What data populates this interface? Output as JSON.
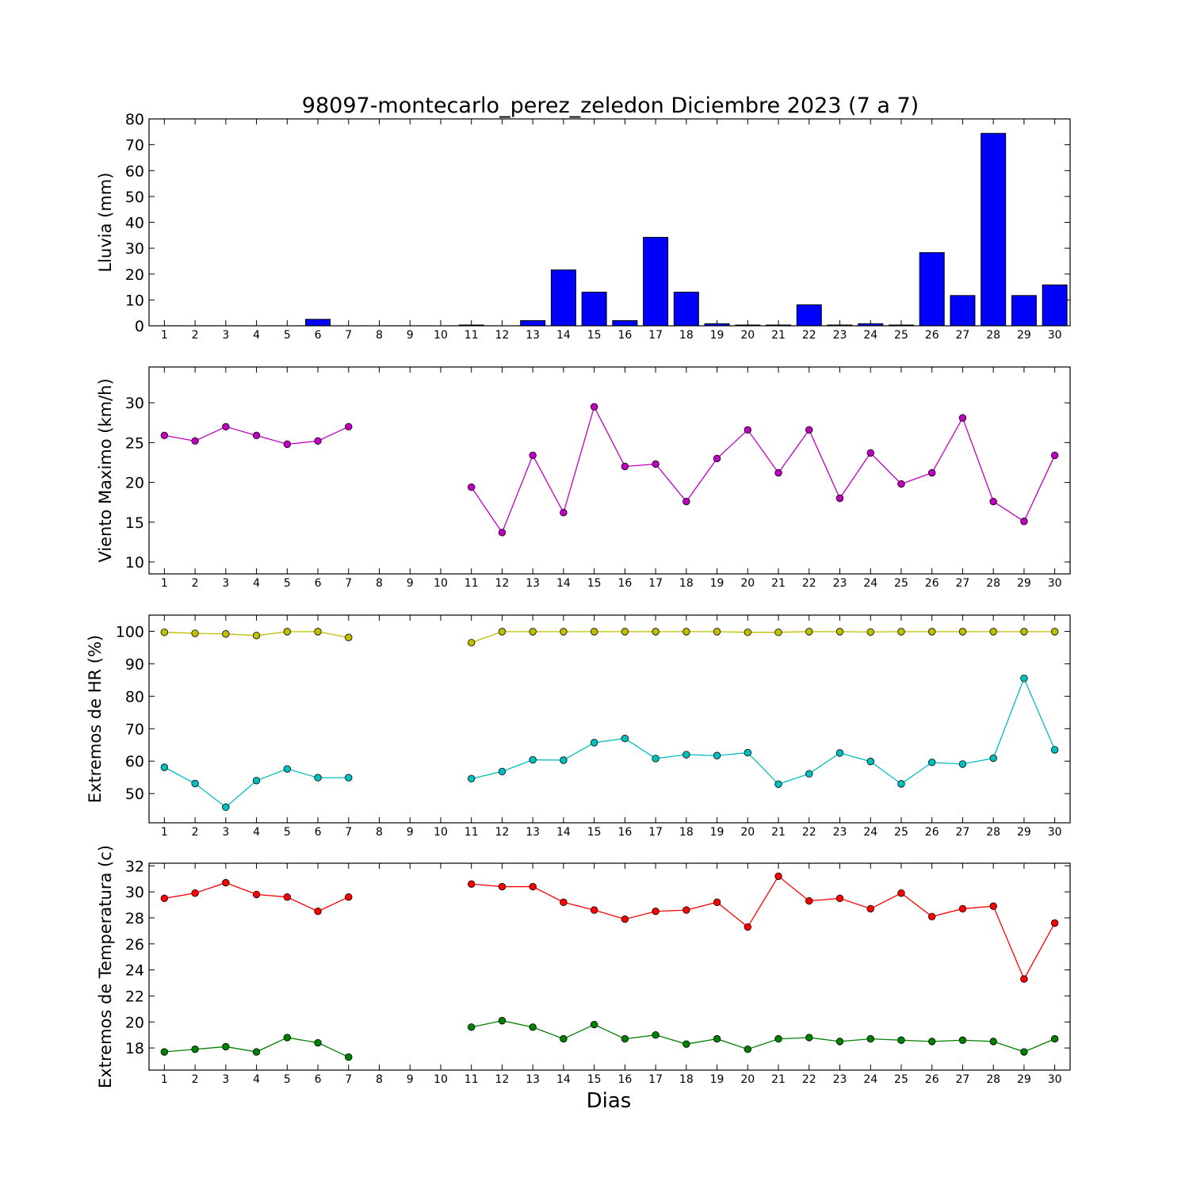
{
  "title": "98097-montecarlo_perez_zeledon Diciembre 2023  (7 a 7)",
  "xlabel": "Dias",
  "colors": {
    "bar_fill": "#0000ff",
    "viento": "#bf00bf",
    "hr_max": "#bfbf00",
    "hr_min": "#00bfbf",
    "temp_max": "#ff0000",
    "temp_min": "#008000"
  },
  "chart_data": [
    {
      "type": "bar",
      "ylabel": "Lluvia (mm)",
      "ylim": [
        0,
        80
      ],
      "yticks": [
        0,
        10,
        20,
        30,
        40,
        50,
        60,
        70,
        80
      ],
      "categories": [
        "1",
        "2",
        "3",
        "4",
        "5",
        "6",
        "7",
        "8",
        "9",
        "10",
        "11",
        "12",
        "13",
        "14",
        "15",
        "16",
        "17",
        "18",
        "19",
        "20",
        "21",
        "22",
        "23",
        "24",
        "25",
        "26",
        "27",
        "28",
        "29",
        "30"
      ],
      "values": [
        0,
        0,
        0,
        0,
        0,
        2.5,
        0,
        0,
        0,
        0,
        0.3,
        0,
        2,
        21.6,
        13,
        2,
        34.2,
        13,
        0.8,
        0.3,
        0.3,
        8.1,
        0.3,
        0.8,
        0.3,
        28.3,
        11.7,
        74.4,
        11.7,
        15.8
      ]
    },
    {
      "type": "line",
      "ylabel": "Viento Maximo (km/h)",
      "ylim": [
        8.5,
        34.5
      ],
      "yticks": [
        10,
        15,
        20,
        25,
        30
      ],
      "x": [
        1,
        2,
        3,
        4,
        5,
        6,
        7,
        8,
        9,
        10,
        11,
        12,
        13,
        14,
        15,
        16,
        17,
        18,
        19,
        20,
        21,
        22,
        23,
        24,
        25,
        26,
        27,
        28,
        29,
        30
      ],
      "series": [
        {
          "color_key": "viento",
          "values": [
            25.9,
            25.2,
            27.0,
            25.9,
            24.8,
            25.2,
            27.0,
            null,
            null,
            null,
            19.4,
            13.7,
            23.4,
            16.2,
            29.5,
            22.0,
            22.3,
            17.6,
            23.0,
            26.6,
            21.2,
            26.6,
            18.0,
            23.7,
            19.8,
            21.2,
            28.1,
            17.6,
            15.1,
            23.4
          ]
        }
      ]
    },
    {
      "type": "line",
      "ylabel": "Extremos de HR (%)",
      "ylim": [
        41,
        105
      ],
      "yticks": [
        50,
        60,
        70,
        80,
        90,
        100
      ],
      "x": [
        1,
        2,
        3,
        4,
        5,
        6,
        7,
        8,
        9,
        10,
        11,
        12,
        13,
        14,
        15,
        16,
        17,
        18,
        19,
        20,
        21,
        22,
        23,
        24,
        25,
        26,
        27,
        28,
        29,
        30
      ],
      "series": [
        {
          "color_key": "hr_max",
          "values": [
            99.7,
            99.4,
            99.2,
            98.7,
            99.9,
            99.9,
            98.1,
            null,
            null,
            null,
            96.5,
            99.9,
            99.9,
            99.9,
            99.9,
            99.9,
            99.9,
            99.9,
            99.9,
            99.7,
            99.7,
            99.9,
            99.9,
            99.8,
            99.9,
            99.9,
            99.9,
            99.9,
            99.9,
            99.9
          ]
        },
        {
          "color_key": "hr_min",
          "values": [
            58.1,
            53.1,
            45.8,
            54.0,
            57.6,
            54.9,
            54.9,
            null,
            null,
            null,
            54.6,
            56.8,
            60.4,
            60.3,
            65.7,
            67.0,
            60.8,
            62.0,
            61.7,
            62.6,
            52.9,
            56.1,
            62.5,
            59.9,
            53.0,
            59.6,
            59.1,
            60.9,
            85.5,
            63.5
          ]
        }
      ]
    },
    {
      "type": "line",
      "ylabel": "Extremos de Temperatura (c)",
      "xlabel": "Dias",
      "ylim": [
        16.3,
        32.2
      ],
      "yticks": [
        18,
        20,
        22,
        24,
        26,
        28,
        30,
        32
      ],
      "x": [
        1,
        2,
        3,
        4,
        5,
        6,
        7,
        8,
        9,
        10,
        11,
        12,
        13,
        14,
        15,
        16,
        17,
        18,
        19,
        20,
        21,
        22,
        23,
        24,
        25,
        26,
        27,
        28,
        29,
        30
      ],
      "series": [
        {
          "color_key": "temp_max",
          "values": [
            29.5,
            29.9,
            30.7,
            29.8,
            29.6,
            28.5,
            29.6,
            null,
            null,
            null,
            30.6,
            30.4,
            30.4,
            29.2,
            28.6,
            27.9,
            28.5,
            28.6,
            29.2,
            27.3,
            31.2,
            29.3,
            29.5,
            28.7,
            29.9,
            28.1,
            28.7,
            28.9,
            23.3,
            27.6
          ]
        },
        {
          "color_key": "temp_min",
          "values": [
            17.7,
            17.9,
            18.1,
            17.7,
            18.8,
            18.4,
            17.3,
            null,
            null,
            null,
            19.6,
            20.1,
            19.6,
            18.7,
            19.8,
            18.7,
            19.0,
            18.3,
            18.7,
            17.9,
            18.7,
            18.8,
            18.5,
            18.7,
            18.6,
            18.5,
            18.6,
            18.5,
            17.7,
            18.7
          ]
        }
      ]
    }
  ]
}
